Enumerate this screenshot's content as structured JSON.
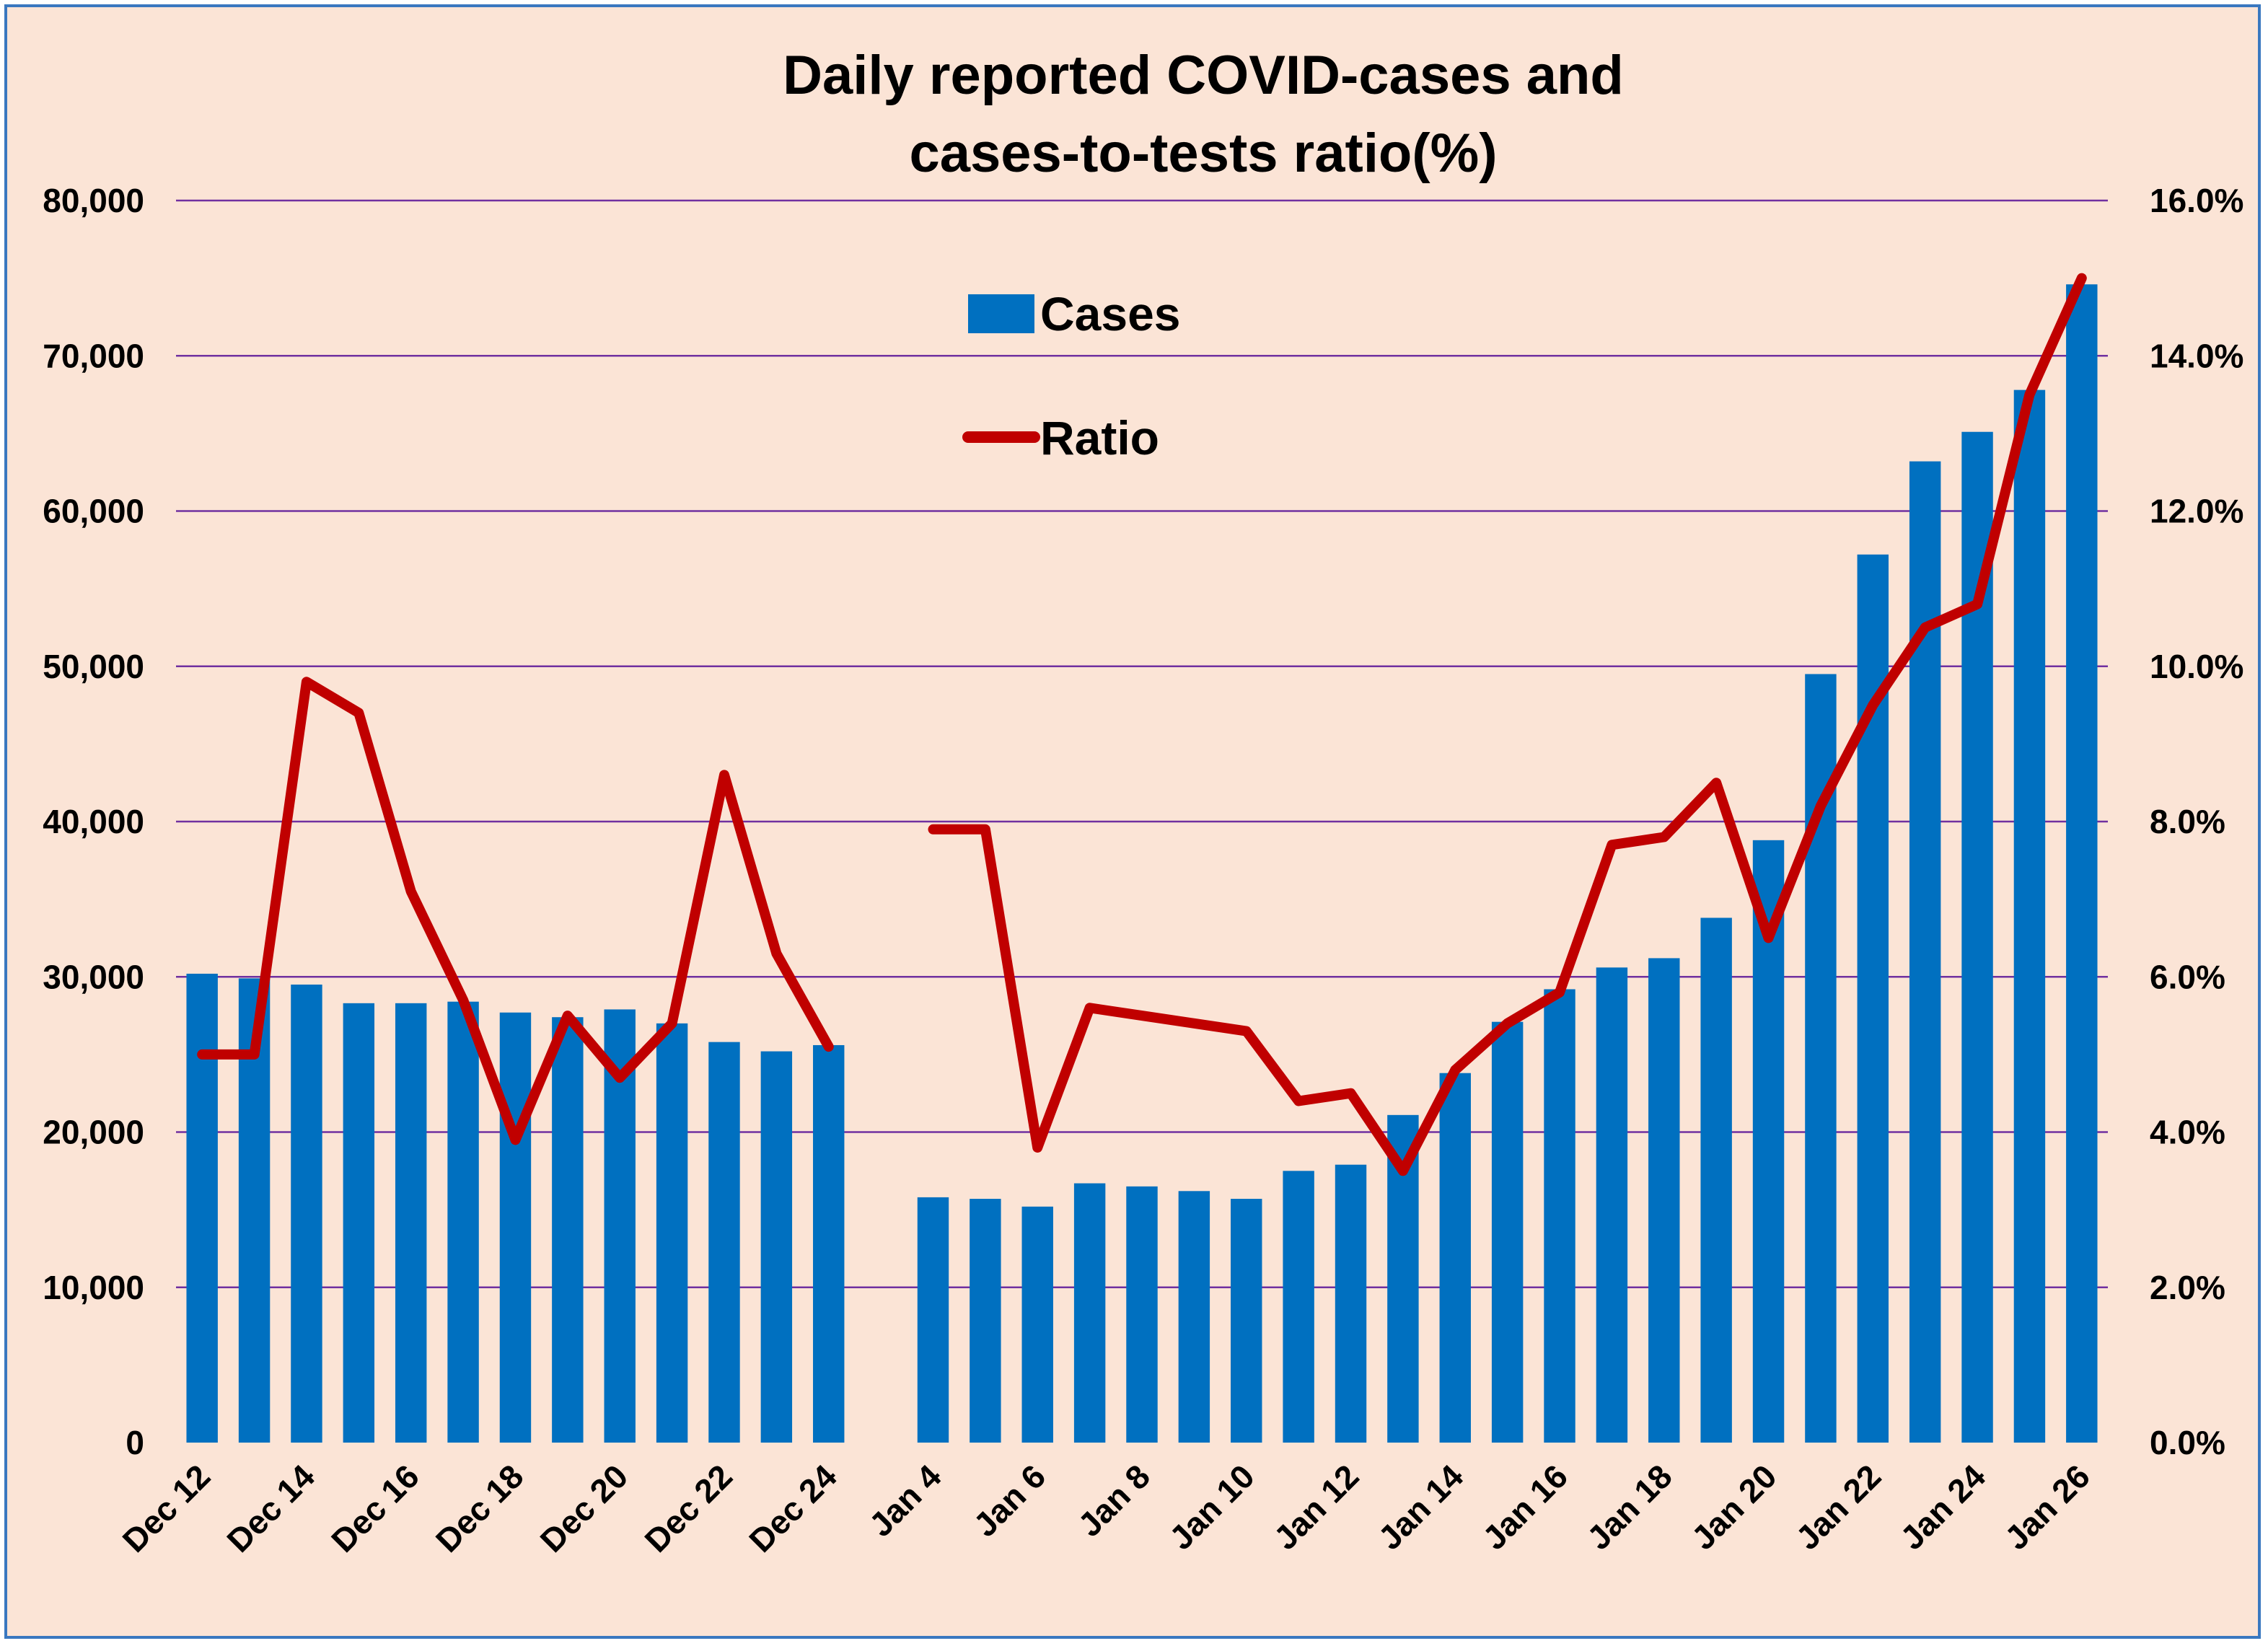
{
  "chart_data": {
    "type": "bar",
    "title_lines": [
      "Daily reported COVID-cases and",
      "cases-to-tests ratio(%)"
    ],
    "categories": [
      "Dec 12",
      "Dec 13",
      "Dec 14",
      "Dec 15",
      "Dec 16",
      "Dec 17",
      "Dec 18",
      "Dec 19",
      "Dec 20",
      "Dec 21",
      "Dec 22",
      "Dec 23",
      "Dec 24",
      "",
      "Jan 4",
      "Jan 5",
      "Jan 6",
      "Jan 7",
      "Jan 8",
      "Jan 9",
      "Jan 10",
      "Jan 11",
      "Jan 12",
      "Jan 13",
      "Jan 14",
      "Jan 15",
      "Jan 16",
      "Jan 17",
      "Jan 18",
      "Jan 19",
      "Jan 20",
      "Jan 21",
      "Jan 22",
      "Jan 23",
      "Jan 24",
      "Jan 25",
      "Jan 26"
    ],
    "tick_labels": [
      "Dec 12",
      "Dec 14",
      "Dec 16",
      "Dec 18",
      "Dec 20",
      "Dec 22",
      "Dec 24",
      "Jan 4",
      "Jan 6",
      "Jan 8",
      "Jan 10",
      "Jan 12",
      "Jan 14",
      "Jan 16",
      "Jan 18",
      "Jan 20",
      "Jan 22",
      "Jan 24",
      "Jan 26"
    ],
    "series": [
      {
        "name": "Cases",
        "type": "bar",
        "axis": "left",
        "color": "#0070C0",
        "values": [
          30200,
          29900,
          29500,
          28300,
          28300,
          28400,
          27700,
          27400,
          27900,
          27000,
          25800,
          25200,
          25600,
          null,
          15800,
          15700,
          15200,
          16700,
          16500,
          16200,
          15700,
          17500,
          17900,
          21100,
          23800,
          27100,
          29200,
          30600,
          31200,
          33800,
          38800,
          49500,
          57200,
          63200,
          65100,
          67800,
          74600
        ]
      },
      {
        "name": "Ratio",
        "type": "line",
        "axis": "right",
        "color": "#C00000",
        "values": [
          5.0,
          5.0,
          9.8,
          9.4,
          7.1,
          5.7,
          3.9,
          5.5,
          4.7,
          5.4,
          8.6,
          6.3,
          5.1,
          null,
          7.9,
          7.9,
          3.8,
          5.6,
          5.5,
          5.4,
          5.3,
          4.4,
          4.5,
          3.5,
          4.8,
          5.4,
          5.8,
          7.7,
          7.8,
          8.5,
          6.5,
          8.2,
          9.5,
          10.5,
          10.8,
          13.5,
          15.0
        ]
      }
    ],
    "y_left": {
      "min": 0,
      "max": 80000,
      "ticks": [
        "0",
        "10,000",
        "20,000",
        "30,000",
        "40,000",
        "50,000",
        "60,000",
        "70,000",
        "80,000"
      ]
    },
    "y_right": {
      "min": 0,
      "max": 16,
      "ticks": [
        "0.0%",
        "2.0%",
        "4.0%",
        "6.0%",
        "8.0%",
        "10.0%",
        "12.0%",
        "14.0%",
        "16.0%"
      ]
    },
    "grid": true,
    "grid_color": "#7030A0",
    "legend_position": "top-center"
  }
}
